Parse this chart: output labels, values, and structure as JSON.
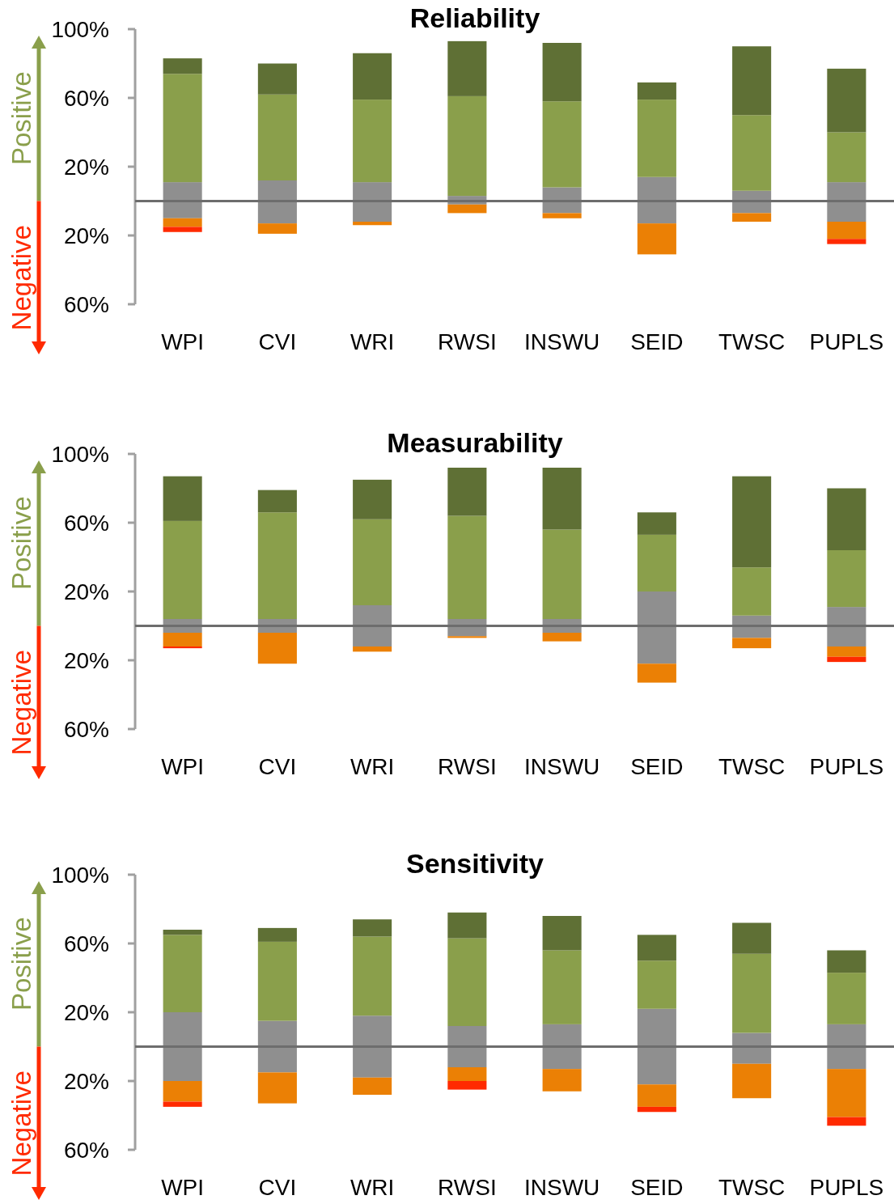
{
  "chart_data": [
    {
      "type": "bar",
      "title": "Reliability",
      "stacked": true,
      "categories": [
        "WPI",
        "CVI",
        "WRI",
        "RWSI",
        "INSWU",
        "SEID",
        "TWSC",
        "PUPLS"
      ],
      "ylim": [
        -60,
        100
      ],
      "yticks": [
        {
          "value": 100,
          "label": "100%"
        },
        {
          "value": 60,
          "label": "60%"
        },
        {
          "value": 20,
          "label": "20%"
        },
        {
          "value": -20,
          "label": "20%"
        },
        {
          "value": -60,
          "label": "60%"
        }
      ],
      "annotations": [
        "Positive",
        "Negative"
      ],
      "series": [
        {
          "color": "#8f8f8f",
          "values": [
            11,
            12,
            11,
            3,
            8,
            14,
            6,
            11
          ]
        },
        {
          "color": "#8a9f4b",
          "values": [
            63,
            50,
            48,
            58,
            50,
            45,
            44,
            29
          ]
        },
        {
          "color": "#5f7035",
          "values": [
            9,
            18,
            27,
            32,
            34,
            10,
            40,
            37
          ]
        },
        {
          "color": "#8f8f8f",
          "values": [
            -10,
            -13,
            -12,
            -2,
            -7,
            -13,
            -7,
            -12
          ]
        },
        {
          "color": "#eb8005",
          "values": [
            -5,
            -6,
            -2,
            -5,
            -3,
            -18,
            -5,
            -10
          ]
        },
        {
          "color": "#ff2a00",
          "values": [
            -3,
            null,
            null,
            null,
            null,
            null,
            null,
            -3
          ]
        }
      ]
    },
    {
      "type": "bar",
      "title": "Measurability",
      "stacked": true,
      "categories": [
        "WPI",
        "CVI",
        "WRI",
        "RWSI",
        "INSWU",
        "SEID",
        "TWSC",
        "PUPLS"
      ],
      "ylim": [
        -60,
        100
      ],
      "yticks": [
        {
          "value": 100,
          "label": "100%"
        },
        {
          "value": 60,
          "label": "60%"
        },
        {
          "value": 20,
          "label": "20%"
        },
        {
          "value": -20,
          "label": "20%"
        },
        {
          "value": -60,
          "label": "60%"
        }
      ],
      "annotations": [
        "Positive",
        "Negative"
      ],
      "series": [
        {
          "color": "#8f8f8f",
          "values": [
            4,
            4,
            12,
            4,
            4,
            20,
            6,
            11
          ]
        },
        {
          "color": "#8a9f4b",
          "values": [
            57,
            62,
            50,
            60,
            52,
            33,
            28,
            33
          ]
        },
        {
          "color": "#5f7035",
          "values": [
            26,
            13,
            23,
            28,
            36,
            13,
            53,
            36
          ]
        },
        {
          "color": "#8f8f8f",
          "values": [
            -4,
            -4,
            -12,
            -6,
            -4,
            -22,
            -7,
            -12
          ]
        },
        {
          "color": "#eb8005",
          "values": [
            -8,
            -18,
            -3,
            -1,
            -5,
            -11,
            -6,
            -6
          ]
        },
        {
          "color": "#ff2a00",
          "values": [
            -1,
            null,
            null,
            null,
            null,
            null,
            null,
            -3
          ]
        }
      ]
    },
    {
      "type": "bar",
      "title": "Sensitivity",
      "stacked": true,
      "categories": [
        "WPI",
        "CVI",
        "WRI",
        "RWSI",
        "INSWU",
        "SEID",
        "TWSC",
        "PUPLS"
      ],
      "ylim": [
        -60,
        100
      ],
      "yticks": [
        {
          "value": 100,
          "label": "100%"
        },
        {
          "value": 60,
          "label": "60%"
        },
        {
          "value": 20,
          "label": "20%"
        },
        {
          "value": -20,
          "label": "20%"
        },
        {
          "value": -60,
          "label": "60%"
        }
      ],
      "annotations": [
        "Positive",
        "Negative"
      ],
      "series": [
        {
          "color": "#8f8f8f",
          "values": [
            20,
            15,
            18,
            12,
            13,
            22,
            8,
            13
          ]
        },
        {
          "color": "#8a9f4b",
          "values": [
            45,
            46,
            46,
            51,
            43,
            28,
            46,
            30
          ]
        },
        {
          "color": "#5f7035",
          "values": [
            3,
            8,
            10,
            15,
            20,
            15,
            18,
            13
          ]
        },
        {
          "color": "#8f8f8f",
          "values": [
            -20,
            -15,
            -18,
            -12,
            -13,
            -22,
            -10,
            -13
          ]
        },
        {
          "color": "#eb8005",
          "values": [
            -12,
            -18,
            -10,
            -8,
            -13,
            -13,
            -20,
            -28
          ]
        },
        {
          "color": "#ff2a00",
          "values": [
            -3,
            null,
            null,
            -5,
            null,
            -3,
            null,
            -5
          ]
        }
      ]
    }
  ]
}
